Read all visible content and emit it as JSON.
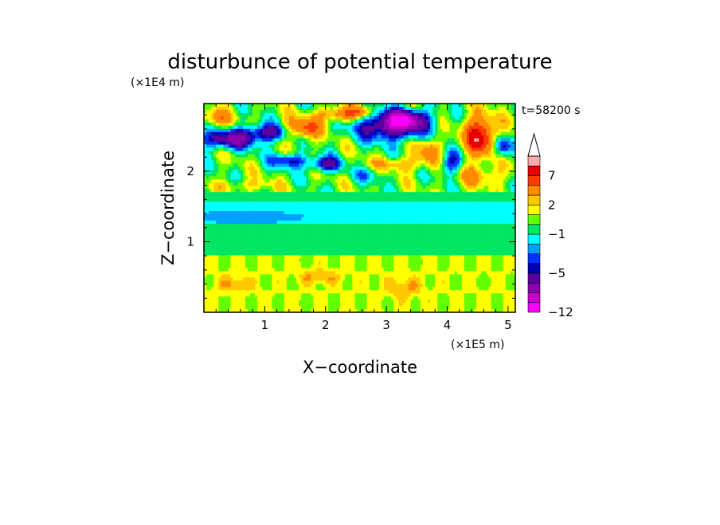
{
  "chart_data": {
    "type": "heatmap",
    "title": "disturbunce of potential temperature",
    "xlabel": "X−coordinate",
    "ylabel": "Z−coordinate",
    "x_scale_label": "(×1E5 m)",
    "y_scale_label": "(×1E4 m)",
    "time_label": "t=58200 s",
    "xlim": [
      0,
      5.12
    ],
    "ylim": [
      0,
      2.96
    ],
    "x_ticks": [
      {
        "value": 1,
        "label": "1"
      },
      {
        "value": 2,
        "label": "2"
      },
      {
        "value": 3,
        "label": "3"
      },
      {
        "value": 4,
        "label": "4"
      },
      {
        "value": 5,
        "label": "5"
      }
    ],
    "y_ticks": [
      {
        "value": 1,
        "label": "1"
      },
      {
        "value": 2,
        "label": "2"
      }
    ],
    "colorbar": {
      "min": -12,
      "max": 11,
      "extend": "max",
      "levels": [
        -12,
        -11,
        -9,
        -7,
        -5,
        -4,
        -3,
        -2,
        -1,
        0,
        1,
        2,
        3,
        5,
        7,
        9,
        11
      ],
      "colors": [
        "#ff00ff",
        "#c800c8",
        "#8c00b4",
        "#5a00a0",
        "#0000b4",
        "#0032ff",
        "#00a0ff",
        "#00ffff",
        "#00e664",
        "#64ff00",
        "#ffff00",
        "#ffc800",
        "#ff8c00",
        "#ff3c00",
        "#e60000",
        "#ffaaaa"
      ],
      "extend_color": "#ffffff",
      "tick_labels": [
        {
          "value": 7,
          "label": "7"
        },
        {
          "value": 2,
          "label": "2"
        },
        {
          "value": -1,
          "label": "−1"
        },
        {
          "value": -5,
          "label": "−5"
        },
        {
          "value": -12,
          "label": "−12"
        }
      ]
    },
    "features": [
      {
        "x": 0.4,
        "z": 2.45,
        "sx": 0.45,
        "sz": 0.13,
        "a": -7
      },
      {
        "x": 1.05,
        "z": 2.55,
        "sx": 0.4,
        "sz": 0.12,
        "a": -6
      },
      {
        "x": 1.4,
        "z": 2.15,
        "sx": 0.3,
        "sz": 0.1,
        "a": -5
      },
      {
        "x": 2.0,
        "z": 2.1,
        "sx": 0.25,
        "sz": 0.1,
        "a": -6
      },
      {
        "x": 1.6,
        "z": 2.6,
        "sx": 0.3,
        "sz": 0.15,
        "a": 6
      },
      {
        "x": 2.2,
        "z": 2.8,
        "sx": 0.35,
        "sz": 0.1,
        "a": 5
      },
      {
        "x": 3.1,
        "z": 2.65,
        "sx": 0.55,
        "sz": 0.2,
        "a": -9
      },
      {
        "x": 3.35,
        "z": 2.75,
        "sx": 0.3,
        "sz": 0.12,
        "a": -6
      },
      {
        "x": 4.55,
        "z": 2.5,
        "sx": 0.28,
        "sz": 0.28,
        "a": 8
      },
      {
        "x": 4.05,
        "z": 2.1,
        "sx": 0.18,
        "sz": 0.18,
        "a": -5
      },
      {
        "x": 4.9,
        "z": 2.35,
        "sx": 0.15,
        "sz": 0.15,
        "a": -6
      },
      {
        "x": 3.2,
        "z": 2.1,
        "sx": 0.45,
        "sz": 0.1,
        "a": 3
      },
      {
        "x": 0.7,
        "z": 1.8,
        "sx": 0.5,
        "sz": 0.08,
        "a": 2
      },
      {
        "x": 4.5,
        "z": 1.95,
        "sx": 0.45,
        "sz": 0.15,
        "a": 3
      },
      {
        "x": 2.7,
        "z": 1.95,
        "sx": 0.3,
        "sz": 0.1,
        "a": -2
      },
      {
        "x": 0.7,
        "z": 1.35,
        "sx": 0.9,
        "sz": 0.08,
        "a": -1.5
      },
      {
        "x": 3.7,
        "z": 2.3,
        "sx": 0.2,
        "sz": 0.2,
        "a": 4
      },
      {
        "x": 2.6,
        "z": 2.85,
        "sx": 0.2,
        "sz": 0.1,
        "a": 4
      },
      {
        "x": 0.2,
        "z": 2.75,
        "sx": 0.25,
        "sz": 0.12,
        "a": 4
      },
      {
        "x": 3.3,
        "z": 0.35,
        "sx": 0.3,
        "sz": 0.15,
        "a": 2
      },
      {
        "x": 1.9,
        "z": 0.5,
        "sx": 0.35,
        "sz": 0.1,
        "a": 2
      },
      {
        "x": 0.5,
        "z": 0.4,
        "sx": 0.3,
        "sz": 0.12,
        "a": 2
      }
    ]
  }
}
